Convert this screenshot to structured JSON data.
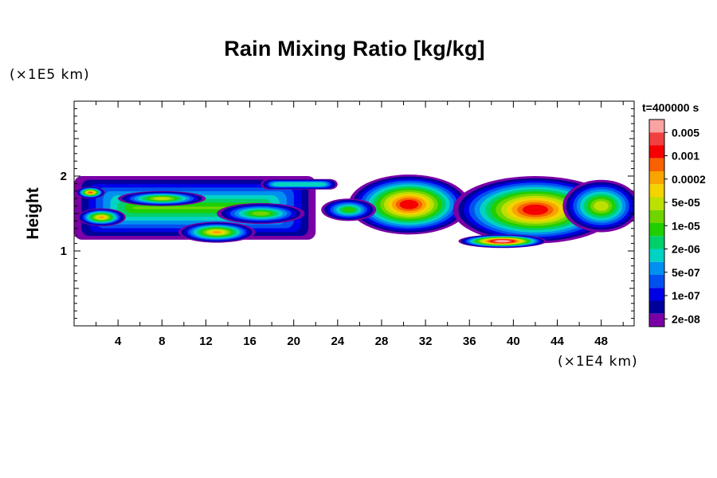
{
  "chart_data": {
    "type": "heatmap",
    "title": "Rain Mixing Ratio [kg/kg]",
    "xlabel": "",
    "ylabel": "Height",
    "x_unit": "(×1E4 km)",
    "y_unit": "(×1E5 km)",
    "time_label": "t=400000 s",
    "xlim": [
      0,
      51
    ],
    "ylim": [
      0,
      3
    ],
    "x_ticks": [
      4,
      8,
      12,
      16,
      20,
      24,
      28,
      32,
      36,
      40,
      44,
      48
    ],
    "y_ticks": [
      1,
      2
    ],
    "colorbar": {
      "levels": [
        "0.005",
        "0.001",
        "0.0002",
        "5e-05",
        "1e-05",
        "2e-06",
        "5e-07",
        "1e-07",
        "2e-08"
      ],
      "colors": [
        "#fba3a3",
        "#f24040",
        "#f50000",
        "#f86000",
        "#f9a400",
        "#f3d300",
        "#bde000",
        "#6fd400",
        "#1fcf00",
        "#00d06a",
        "#00d2c4",
        "#0090f0",
        "#0050f0",
        "#0000e6",
        "#00009a",
        "#7a00a6"
      ]
    },
    "regions": [
      {
        "name": "left band",
        "x_range": [
          0,
          22
        ],
        "y_range": [
          1.15,
          2.0
        ],
        "peak_level": "0.0002"
      },
      {
        "name": "central cell",
        "x_range": [
          26,
          36
        ],
        "y_range": [
          1.3,
          2.0
        ],
        "peak_level": "0.001"
      },
      {
        "name": "right cell",
        "x_range": [
          36,
          51
        ],
        "y_range": [
          1.05,
          2.0
        ],
        "peak_level": "0.005"
      }
    ]
  }
}
